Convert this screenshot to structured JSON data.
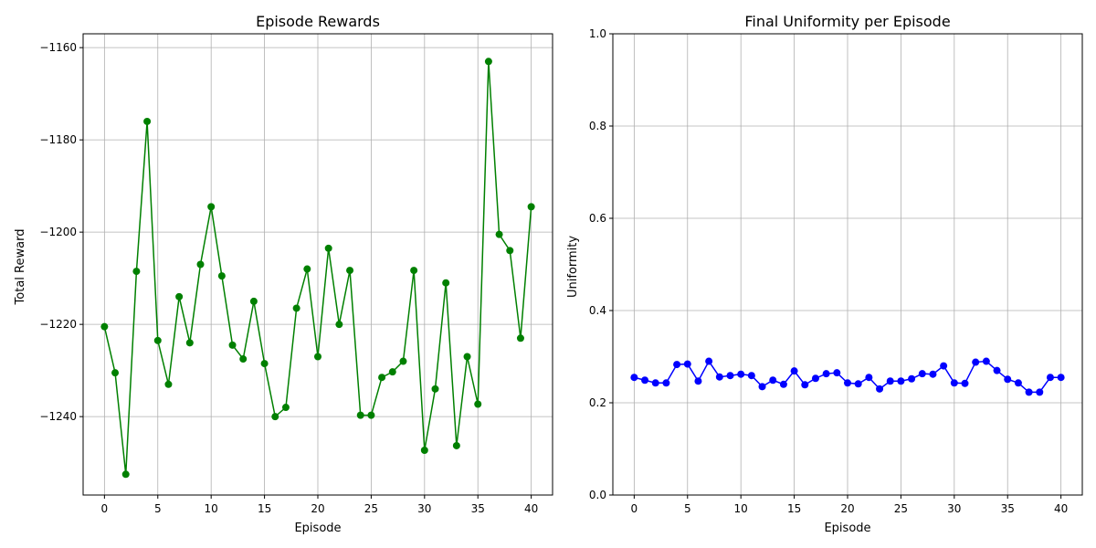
{
  "chart_data": [
    {
      "type": "line",
      "title": "Episode Rewards",
      "xlabel": "Episode",
      "ylabel": "Total Reward",
      "xlim": [
        -2,
        42
      ],
      "ylim": [
        -1257,
        -1157
      ],
      "xticks": [
        0,
        5,
        10,
        15,
        20,
        25,
        30,
        35,
        40
      ],
      "yticks": [
        -1240,
        -1220,
        -1200,
        -1180,
        -1160
      ],
      "grid": true,
      "color": "#008000",
      "x": [
        0,
        1,
        2,
        3,
        4,
        5,
        6,
        7,
        8,
        9,
        10,
        11,
        12,
        13,
        14,
        15,
        16,
        17,
        18,
        19,
        20,
        21,
        22,
        23,
        24,
        25,
        26,
        27,
        28,
        29,
        30,
        31,
        32,
        33,
        34,
        35,
        36,
        37,
        38,
        39,
        40
      ],
      "y": [
        -1220.5,
        -1230.5,
        -1252.5,
        -1208.5,
        -1176,
        -1223.5,
        -1233,
        -1214,
        -1224,
        -1207,
        -1194.5,
        -1209.5,
        -1224.5,
        -1227.5,
        -1215,
        -1228.5,
        -1240,
        -1238,
        -1216.5,
        -1208,
        -1227,
        -1203.5,
        -1220,
        -1208.3,
        -1239.7,
        -1239.7,
        -1231.5,
        -1230.3,
        -1228,
        -1208.3,
        -1247.3,
        -1234,
        -1211,
        -1246.3,
        -1227,
        -1237.3,
        -1163,
        -1200.5,
        -1204,
        -1223,
        -1194.5
      ]
    },
    {
      "type": "line",
      "title": "Final Uniformity per Episode",
      "xlabel": "Episode",
      "ylabel": "Uniformity",
      "xlim": [
        -2,
        42
      ],
      "ylim": [
        0.0,
        1.0
      ],
      "xticks": [
        0,
        5,
        10,
        15,
        20,
        25,
        30,
        35,
        40
      ],
      "yticks": [
        0.0,
        0.2,
        0.4,
        0.6,
        0.8,
        1.0
      ],
      "ytick_labels": [
        "0.0",
        "0.2",
        "0.4",
        "0.6",
        "0.8",
        "1.0"
      ],
      "grid": true,
      "color": "#0000ff",
      "x": [
        0,
        1,
        2,
        3,
        4,
        5,
        6,
        7,
        8,
        9,
        10,
        11,
        12,
        13,
        14,
        15,
        16,
        17,
        18,
        19,
        20,
        21,
        22,
        23,
        24,
        25,
        26,
        27,
        28,
        29,
        30,
        31,
        32,
        33,
        34,
        35,
        36,
        37,
        38,
        39,
        40
      ],
      "y": [
        0.255,
        0.249,
        0.243,
        0.243,
        0.283,
        0.284,
        0.247,
        0.29,
        0.256,
        0.259,
        0.262,
        0.259,
        0.235,
        0.249,
        0.24,
        0.269,
        0.239,
        0.253,
        0.263,
        0.265,
        0.243,
        0.241,
        0.255,
        0.23,
        0.247,
        0.247,
        0.252,
        0.263,
        0.262,
        0.28,
        0.243,
        0.242,
        0.288,
        0.29,
        0.27,
        0.251,
        0.243,
        0.223,
        0.223,
        0.255,
        0.255
      ]
    }
  ]
}
